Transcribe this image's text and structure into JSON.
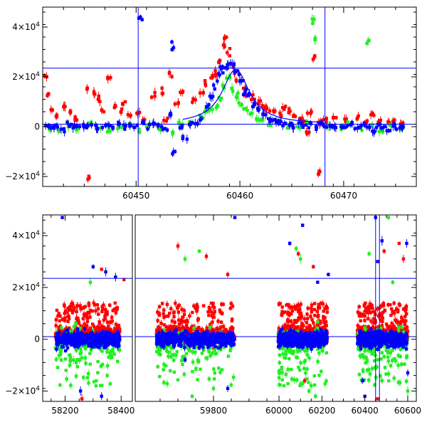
{
  "chart_data": [
    {
      "type": "scatter",
      "title": "",
      "xlabel": "",
      "ylabel": "",
      "xlim": [
        60441,
        60477
      ],
      "ylim": [
        -24000,
        48000
      ],
      "xticks": [
        60450,
        60460,
        60470
      ],
      "xtick_labels": [
        "60450",
        "60460",
        "60470"
      ],
      "yticks": [
        -20000,
        0,
        20000,
        40000
      ],
      "ytick_labels": [
        {
          "mant": "−2×10",
          "exp": "4"
        },
        {
          "mant": "0",
          "exp": ""
        },
        {
          "mant": "2×10",
          "exp": "4"
        },
        {
          "mant": "4×10",
          "exp": "4"
        }
      ],
      "hlines": [
        23500,
        1000
      ],
      "vlines": [
        60450.2,
        60468.2
      ],
      "model_curve": {
        "baseline": 1000,
        "peak": 23000,
        "t0": 60459.6,
        "width": 1.6,
        "xrange": [
          60454.5,
          60468
        ]
      },
      "series": [
        {
          "color": "#ff0000",
          "points": [
            [
              60441.3,
              19500
            ],
            [
              60441.6,
              12000
            ],
            [
              60441.9,
              7000
            ],
            [
              60442.3,
              4000
            ],
            [
              60443.2,
              8000
            ],
            [
              60443.6,
              6000
            ],
            [
              60444.3,
              3000
            ],
            [
              60445.4,
              15000
            ],
            [
              60445.9,
              14000
            ],
            [
              60446.3,
              11000
            ],
            [
              60446.8,
              6000
            ],
            [
              60447.4,
              20000
            ],
            [
              60447.9,
              8000
            ],
            [
              60448.4,
              6000
            ],
            [
              60448.9,
              9000
            ],
            [
              60449.4,
              5000
            ],
            [
              60450.2,
              6000
            ],
            [
              60450.8,
              2500
            ],
            [
              60451.6,
              13000
            ],
            [
              60452.4,
              14000
            ],
            [
              60452.9,
              3000
            ],
            [
              60453.4,
              21000
            ],
            [
              60453.9,
              9000
            ],
            [
              60454.4,
              14000
            ],
            [
              60455.5,
              10000
            ],
            [
              60456.3,
              13000
            ],
            [
              60456.8,
              17000
            ],
            [
              60457.2,
              20000
            ],
            [
              60457.5,
              21000
            ],
            [
              60458.0,
              27000
            ],
            [
              60458.5,
              33000
            ],
            [
              60458.7,
              36000
            ],
            [
              60459.0,
              30000
            ],
            [
              60459.4,
              23000
            ],
            [
              60459.8,
              19000
            ],
            [
              60460.3,
              15000
            ],
            [
              60460.8,
              14000
            ],
            [
              60461.3,
              11000
            ],
            [
              60461.8,
              10000
            ],
            [
              60462.3,
              8000
            ],
            [
              60462.8,
              7000
            ],
            [
              60463.3,
              6000
            ],
            [
              60463.8,
              5000
            ],
            [
              60464.3,
              8000
            ],
            [
              60464.8,
              6000
            ],
            [
              60465.3,
              4000
            ],
            [
              60465.8,
              3000
            ],
            [
              60466.3,
              2000
            ],
            [
              60466.7,
              6000
            ],
            [
              60467.2,
              28000
            ],
            [
              60467.7,
              1500
            ],
            [
              60468.2,
              3000
            ],
            [
              60469.2,
              4000
            ],
            [
              60470.2,
              3000
            ],
            [
              60471.2,
              3500
            ],
            [
              60472.2,
              2000
            ],
            [
              60472.8,
              5000
            ],
            [
              60473.4,
              2000
            ],
            [
              60474.2,
              1500
            ],
            [
              60474.8,
              2000
            ],
            [
              60475.5,
              1000
            ],
            [
              60445.5,
              -20500
            ],
            [
              60467.5,
              -18000
            ],
            [
              60466.5,
              -2000
            ]
          ]
        },
        {
          "color": "#22ee22",
          "points": [
            [
              60441.8,
              -500
            ],
            [
              60442.6,
              -1500
            ],
            [
              60443.4,
              500
            ],
            [
              60444.3,
              -1000
            ],
            [
              60445.6,
              1500
            ],
            [
              60446.4,
              0
            ],
            [
              60447.3,
              -2000
            ],
            [
              60448.4,
              -500
            ],
            [
              60449.3,
              1000
            ],
            [
              60450.3,
              -1500
            ],
            [
              60451.2,
              500
            ],
            [
              60452.3,
              -1000
            ],
            [
              60453.5,
              -2500
            ],
            [
              60454.3,
              1000
            ],
            [
              60455.3,
              2000
            ],
            [
              60456.3,
              4000
            ],
            [
              60456.8,
              6000
            ],
            [
              60457.2,
              7000
            ],
            [
              60457.7,
              8000
            ],
            [
              60458.1,
              12000
            ],
            [
              60458.5,
              16000
            ],
            [
              60458.9,
              19000
            ],
            [
              60459.3,
              16000
            ],
            [
              60459.7,
              12000
            ],
            [
              60460.1,
              9000
            ],
            [
              60460.6,
              7000
            ],
            [
              60461.1,
              5000
            ],
            [
              60461.6,
              3000
            ],
            [
              60462.1,
              2500
            ],
            [
              60462.8,
              1000
            ],
            [
              60463.6,
              2000
            ],
            [
              60464.6,
              0
            ],
            [
              60465.6,
              -500
            ],
            [
              60466.6,
              1500
            ],
            [
              60467.0,
              42000
            ],
            [
              60467.4,
              35000
            ],
            [
              60468.6,
              0
            ],
            [
              60469.6,
              -1000
            ],
            [
              60470.6,
              1000
            ],
            [
              60471.6,
              -500
            ],
            [
              60472.3,
              34000
            ],
            [
              60472.6,
              500
            ],
            [
              60473.6,
              -2000
            ],
            [
              60474.6,
              0
            ],
            [
              60475.6,
              -500
            ]
          ]
        },
        {
          "color": "#0000ff",
          "points": [
            [
              60441.4,
              0
            ],
            [
              60441.9,
              -500
            ],
            [
              60442.4,
              500
            ],
            [
              60442.9,
              -1500
            ],
            [
              60443.4,
              500
            ],
            [
              60443.9,
              0
            ],
            [
              60444.4,
              -500
            ],
            [
              60444.9,
              500
            ],
            [
              60445.4,
              0
            ],
            [
              60445.9,
              1000
            ],
            [
              60446.4,
              -500
            ],
            [
              60446.9,
              0
            ],
            [
              60447.4,
              500
            ],
            [
              60447.9,
              -500
            ],
            [
              60448.4,
              1000
            ],
            [
              60448.9,
              0
            ],
            [
              60449.4,
              500
            ],
            [
              60449.9,
              0
            ],
            [
              60450.4,
              44000
            ],
            [
              60450.8,
              1500
            ],
            [
              60451.3,
              0
            ],
            [
              60451.8,
              1000
            ],
            [
              60452.3,
              500
            ],
            [
              60452.8,
              -500
            ],
            [
              60453.3,
              5000
            ],
            [
              60453.5,
              32000
            ],
            [
              60453.7,
              -11000
            ],
            [
              60454.3,
              0
            ],
            [
              60454.7,
              -5000
            ],
            [
              60455.3,
              1000
            ],
            [
              60455.8,
              1500
            ],
            [
              60456.3,
              3000
            ],
            [
              60456.8,
              8000
            ],
            [
              60457.2,
              12000
            ],
            [
              60457.6,
              17000
            ],
            [
              60458.0,
              22000
            ],
            [
              60458.3,
              23000
            ],
            [
              60458.6,
              24000
            ],
            [
              60458.9,
              25000
            ],
            [
              60459.3,
              25000
            ],
            [
              60459.7,
              22000
            ],
            [
              60460.1,
              18000
            ],
            [
              60460.5,
              14000
            ],
            [
              60460.9,
              12000
            ],
            [
              60461.4,
              9000
            ],
            [
              60461.9,
              7000
            ],
            [
              60462.3,
              5000
            ],
            [
              60462.8,
              3000
            ],
            [
              60463.3,
              2500
            ],
            [
              60463.8,
              2000
            ],
            [
              60464.3,
              1500
            ],
            [
              60464.8,
              1000
            ],
            [
              60465.3,
              500
            ],
            [
              60465.8,
              1000
            ],
            [
              60466.3,
              0
            ],
            [
              60466.8,
              500
            ],
            [
              60467.3,
              -500
            ],
            [
              60467.8,
              1000
            ],
            [
              60468.3,
              500
            ],
            [
              60468.8,
              0
            ],
            [
              60469.3,
              -500
            ],
            [
              60469.8,
              500
            ],
            [
              60470.3,
              0
            ],
            [
              60470.8,
              1000
            ],
            [
              60471.3,
              -500
            ],
            [
              60471.8,
              500
            ],
            [
              60472.3,
              0
            ],
            [
              60472.8,
              -1500
            ],
            [
              60473.3,
              500
            ],
            [
              60473.8,
              0
            ],
            [
              60474.3,
              -1000
            ],
            [
              60474.8,
              500
            ],
            [
              60475.3,
              -500
            ],
            [
              60475.8,
              0
            ]
          ]
        }
      ]
    },
    {
      "type": "scatter",
      "title": "",
      "xlabel": "",
      "ylabel": "",
      "ylim": [
        -24000,
        48000
      ],
      "segments": [
        {
          "xlim": [
            58120,
            58440
          ],
          "xticks": [
            58200,
            58400
          ],
          "xtick_labels": [
            "58200",
            "58400"
          ]
        },
        {
          "xlim": [
            59580,
            59960
          ],
          "xticks": [
            59800
          ],
          "xtick_labels": [
            "59800"
          ]
        },
        {
          "xlim": [
            59960,
            60640
          ],
          "xticks": [
            60000,
            60200,
            60400,
            60600
          ],
          "xtick_labels": [
            "60000",
            "60200",
            "60400",
            "60600"
          ]
        }
      ],
      "yticks": [
        -20000,
        0,
        20000,
        40000
      ],
      "ytick_labels": [
        {
          "mant": "−2×10",
          "exp": "4"
        },
        {
          "mant": "0",
          "exp": ""
        },
        {
          "mant": "2×10",
          "exp": "4"
        },
        {
          "mant": "4×10",
          "exp": "4"
        }
      ],
      "hlines": [
        23500,
        1000
      ],
      "vlines": [
        60450.2,
        60468.2
      ],
      "season_ranges": [
        [
          58165,
          58395
        ],
        [
          59640,
          59860
        ],
        [
          59995,
          60225
        ],
        [
          60365,
          60600
        ]
      ],
      "colors": [
        "#ff0000",
        "#22ee22",
        "#0000ff"
      ],
      "outliers": [
        {
          "color": "#0000ff",
          "points": [
            [
              58190,
              47000
            ],
            [
              58300,
              28000
            ],
            [
              58345,
              26000
            ],
            [
              58380,
              24000
            ],
            [
              58255,
              -20000
            ],
            [
              58330,
              -22000
            ],
            [
              59860,
              47000
            ],
            [
              59720,
              -8000
            ],
            [
              59840,
              -19000
            ],
            [
              60050,
              37000
            ],
            [
              60110,
              44000
            ],
            [
              60180,
              22000
            ],
            [
              60230,
              25000
            ],
            [
              60450,
              47000
            ],
            [
              60460,
              30000
            ],
            [
              60480,
              38000
            ],
            [
              60595,
              37000
            ],
            [
              60600,
              -13000
            ],
            [
              60390,
              -16000
            ],
            [
              60400,
              -22000
            ]
          ]
        },
        {
          "color": "#22ee22",
          "points": [
            [
              58290,
              22000
            ],
            [
              58220,
              -8000
            ],
            [
              58310,
              -18000
            ],
            [
              58350,
              -14000
            ],
            [
              59720,
              31000
            ],
            [
              59760,
              34000
            ],
            [
              59800,
              -19000
            ],
            [
              59740,
              -22000
            ],
            [
              60080,
              35000
            ],
            [
              60100,
              31000
            ],
            [
              60140,
              -20000
            ],
            [
              60170,
              -22000
            ],
            [
              60420,
              33000
            ],
            [
              60510,
              47000
            ],
            [
              60530,
              22000
            ],
            [
              60600,
              -20000
            ],
            [
              60480,
              -16000
            ]
          ]
        },
        {
          "color": "#ff0000",
          "points": [
            [
              58330,
              27000
            ],
            [
              58410,
              23000
            ],
            [
              58260,
              -23000
            ],
            [
              59700,
              36000
            ],
            [
              59780,
              32000
            ],
            [
              59840,
              25000
            ],
            [
              60090,
              33000
            ],
            [
              60160,
              28000
            ],
            [
              60120,
              -16000
            ],
            [
              60490,
              34000
            ],
            [
              60560,
              37000
            ],
            [
              60580,
              31000
            ],
            [
              60460,
              -23000
            ]
          ]
        }
      ]
    }
  ]
}
